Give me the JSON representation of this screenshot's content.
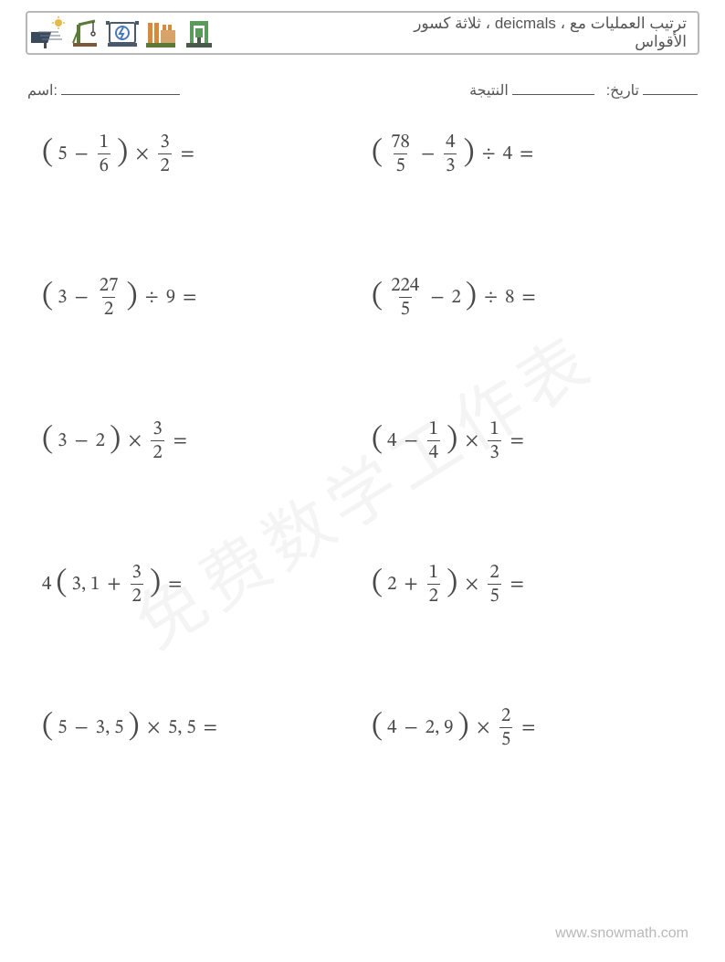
{
  "header": {
    "title_line1": "ترتيب العمليات مع ، deicmals ، ثلاثة كسور",
    "title_line2": "الأقواس",
    "title_color": "#555555",
    "title_fontsize": 17,
    "border_color": "#b8b8b8"
  },
  "meta": {
    "name_label": "اسم:",
    "name_underline_width": 130,
    "result_label": "النتيجة",
    "result_underline_width": 90,
    "date_label": ":تاريخ",
    "date_underline_width": 60,
    "fontsize": 16,
    "color": "#555555"
  },
  "math_style": {
    "fontsize": 21,
    "color": "#4a4a4a",
    "paren_fontsize": 34,
    "fraction_bar_color": "#4a4a4a"
  },
  "problems": {
    "row_gap": 110,
    "left": [
      {
        "tokens": [
          "LP",
          "5",
          "−",
          {
            "frac": [
              "1",
              "6"
            ]
          },
          "RP",
          "×",
          {
            "frac": [
              "3",
              "2"
            ]
          },
          "="
        ]
      },
      {
        "tokens": [
          "LP",
          "3",
          "−",
          {
            "frac": [
              "27",
              "2"
            ]
          },
          "RP",
          "÷",
          "9",
          "="
        ]
      },
      {
        "tokens": [
          "LP",
          "3",
          "−",
          "2",
          "RP",
          "×",
          {
            "frac": [
              "3",
              "2"
            ]
          },
          "="
        ]
      },
      {
        "tokens": [
          "4",
          "LP",
          "3, 1",
          "+",
          {
            "frac": [
              "3",
              "2"
            ]
          },
          "RP",
          "="
        ]
      },
      {
        "tokens": [
          "LP",
          "5",
          "−",
          "3, 5",
          "RP",
          "×",
          "5, 5",
          "="
        ]
      }
    ],
    "right": [
      {
        "tokens": [
          "LP",
          {
            "frac": [
              "78",
              "5"
            ]
          },
          "−",
          {
            "frac": [
              "4",
              "3"
            ]
          },
          "RP",
          "÷",
          "4",
          "="
        ]
      },
      {
        "tokens": [
          "LP",
          {
            "frac": [
              "224",
              "5"
            ]
          },
          "−",
          "2",
          "RP",
          "÷",
          "8",
          "="
        ]
      },
      {
        "tokens": [
          "LP",
          "4",
          "−",
          {
            "frac": [
              "1",
              "4"
            ]
          },
          "RP",
          "×",
          {
            "frac": [
              "1",
              "3"
            ]
          },
          "="
        ]
      },
      {
        "tokens": [
          "LP",
          "2",
          "+",
          {
            "frac": [
              "1",
              "2"
            ]
          },
          "RP",
          "×",
          {
            "frac": [
              "2",
              "5"
            ]
          },
          "="
        ]
      },
      {
        "tokens": [
          "LP",
          "4",
          "−",
          "2, 9",
          "RP",
          "×",
          {
            "frac": [
              "2",
              "5"
            ]
          },
          "="
        ]
      }
    ]
  },
  "watermark": {
    "text": "免费数学工作表",
    "color": "rgba(0,0,0,0.045)",
    "fontsize": 74,
    "rotation_deg": -32
  },
  "footer": {
    "text": "www.snowmath.com",
    "color": "#b8b8b8",
    "fontsize": 16
  },
  "logos": [
    {
      "name": "solar-panel-icon",
      "primary": "#3a4a5a",
      "accent": "#e6b84a"
    },
    {
      "name": "crane-icon",
      "primary": "#5a7a3a",
      "accent": "#7a5a3a"
    },
    {
      "name": "generator-icon",
      "primary": "#4a7aba",
      "accent": "#4a5a6a"
    },
    {
      "name": "factory-icon",
      "primary": "#d68a3a",
      "accent": "#5a7a3a"
    },
    {
      "name": "machine-press-icon",
      "primary": "#5a9a5a",
      "accent": "#4a5a4a"
    }
  ]
}
